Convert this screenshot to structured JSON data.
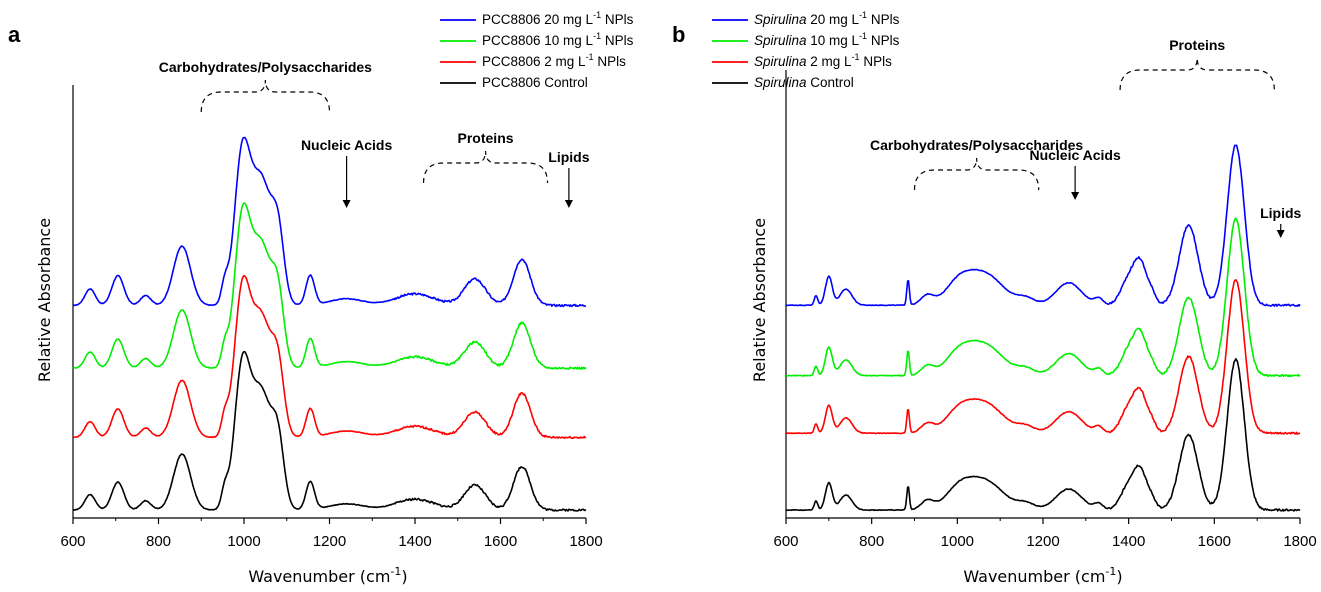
{
  "chart_data": [
    {
      "type": "line",
      "panel": "a",
      "xlabel": "Wavenumber (cm",
      "xlabel_sup": "-1",
      "xlabel_close": ")",
      "ylabel": "Relative Absorbance",
      "xlim": [
        600,
        1800
      ],
      "xticks": [
        600,
        800,
        1000,
        1200,
        1400,
        1600,
        1800
      ],
      "legend_position": "top-right",
      "series": [
        {
          "name_pre": "PCC8806 20 mg L",
          "name_sup": "-1",
          "name_post": " NPls",
          "color": "#0000ff",
          "offset": 0.62
        },
        {
          "name_pre": "PCC8806 10 mg L",
          "name_sup": "-1",
          "name_post": " NPls",
          "color": "#00ee00",
          "offset": 0.43
        },
        {
          "name_pre": "PCC8806 2 mg L",
          "name_sup": "-1",
          "name_post": " NPls",
          "color": "#ff0000",
          "offset": 0.22
        },
        {
          "name_pre": "PCC8806 Control",
          "name_sup": "",
          "name_post": "",
          "color": "#000000",
          "offset": 0.0
        }
      ],
      "peaks": [
        {
          "x": 640,
          "h": 0.05,
          "w": 12
        },
        {
          "x": 705,
          "h": 0.09,
          "w": 14
        },
        {
          "x": 770,
          "h": 0.03,
          "w": 12
        },
        {
          "x": 855,
          "h": 0.18,
          "w": 20
        },
        {
          "x": 955,
          "h": 0.06,
          "w": 8
        },
        {
          "x": 995,
          "h": 0.42,
          "w": 18
        },
        {
          "x": 1040,
          "h": 0.38,
          "w": 25
        },
        {
          "x": 1080,
          "h": 0.18,
          "w": 14
        },
        {
          "x": 1155,
          "h": 0.09,
          "w": 10
        },
        {
          "x": 1240,
          "h": 0.02,
          "w": 40
        },
        {
          "x": 1400,
          "h": 0.035,
          "w": 45
        },
        {
          "x": 1540,
          "h": 0.08,
          "w": 25
        },
        {
          "x": 1650,
          "h": 0.14,
          "w": 20
        }
      ],
      "annotations": [
        {
          "text": "Carbohydrates/Polysaccharides",
          "x": 1025,
          "brace": [
            900,
            1200
          ]
        },
        {
          "text": "Nucleic Acids",
          "x": 1240,
          "arrow": true
        },
        {
          "text": "Proteins",
          "x": 1560,
          "brace": [
            1420,
            1710
          ]
        },
        {
          "text": "Lipids",
          "x": 1760,
          "arrow": true
        }
      ]
    },
    {
      "type": "line",
      "panel": "b",
      "xlabel": "Wavenumber (cm",
      "xlabel_sup": "-1",
      "xlabel_close": ")",
      "ylabel": "Relative Absorbance",
      "xlim": [
        600,
        1800
      ],
      "xticks": [
        600,
        800,
        1000,
        1200,
        1400,
        1600,
        1800
      ],
      "legend_position": "top-left",
      "series": [
        {
          "name_pre": "Spirulina",
          "name_mid": " 20 mg L",
          "name_sup": "-1",
          "name_post": " NPls",
          "color": "#0000ff",
          "offset": 0.64
        },
        {
          "name_pre": "Spirulina",
          "name_mid": " 10 mg L",
          "name_sup": "-1",
          "name_post": " NPls",
          "color": "#00ee00",
          "offset": 0.42
        },
        {
          "name_pre": "Spirulina",
          "name_mid": " 2 mg L",
          "name_sup": "-1",
          "name_post": " NPls",
          "color": "#ff0000",
          "offset": 0.24
        },
        {
          "name_pre": "Spirulina",
          "name_mid": " Control",
          "name_sup": "",
          "name_post": "",
          "color": "#000000",
          "offset": 0.0
        }
      ],
      "peaks": [
        {
          "x": 670,
          "h": 0.03,
          "w": 4
        },
        {
          "x": 700,
          "h": 0.09,
          "w": 8
        },
        {
          "x": 740,
          "h": 0.05,
          "w": 14
        },
        {
          "x": 885,
          "h": 0.08,
          "w": 3
        },
        {
          "x": 930,
          "h": 0.03,
          "w": 15
        },
        {
          "x": 1000,
          "h": 0.05,
          "w": 30
        },
        {
          "x": 1060,
          "h": 0.1,
          "w": 45
        },
        {
          "x": 1160,
          "h": 0.02,
          "w": 20
        },
        {
          "x": 1260,
          "h": 0.07,
          "w": 30
        },
        {
          "x": 1330,
          "h": 0.02,
          "w": 10
        },
        {
          "x": 1400,
          "h": 0.08,
          "w": 18
        },
        {
          "x": 1428,
          "h": 0.12,
          "w": 15
        },
        {
          "x": 1455,
          "h": 0.03,
          "w": 10
        },
        {
          "x": 1540,
          "h": 0.25,
          "w": 22
        },
        {
          "x": 1650,
          "h": 0.5,
          "w": 20
        }
      ],
      "annotations": [
        {
          "text": "Carbohydrates/Polysaccharides",
          "x": 1040,
          "brace": [
            900,
            1190
          ]
        },
        {
          "text": "Nucleic Acids",
          "x": 1275,
          "arrow": true
        },
        {
          "text": "Proteins",
          "x": 1575,
          "brace": [
            1380,
            1740
          ]
        },
        {
          "text": "Lipids",
          "x": 1755,
          "arrow": true
        }
      ]
    }
  ]
}
